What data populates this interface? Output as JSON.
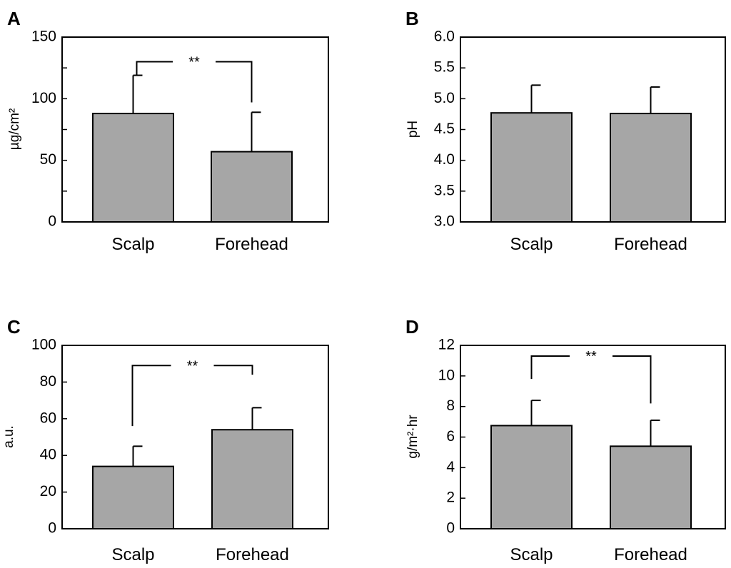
{
  "chart_data": [
    {
      "type": "bar",
      "panel": "A",
      "categories": [
        "Scalp",
        "Forehead"
      ],
      "values": [
        88,
        57
      ],
      "errors": [
        31,
        32
      ],
      "ylabel": "µg/cm²",
      "ylim": [
        0,
        150
      ],
      "major_ticks": [
        0,
        50,
        100,
        150
      ],
      "tick_labels": [
        "0",
        "50",
        "100",
        "150"
      ],
      "minor_ticks": [
        25,
        75,
        125
      ],
      "significance": {
        "label": "**",
        "left_value": 119,
        "right_value": 97,
        "top_value": 130
      }
    },
    {
      "type": "bar",
      "panel": "B",
      "categories": [
        "Scalp",
        "Forehead"
      ],
      "values": [
        4.77,
        4.76
      ],
      "errors": [
        0.45,
        0.43
      ],
      "ylabel": "pH",
      "ylim": [
        3.0,
        6.0
      ],
      "major_ticks": [
        3.0,
        3.5,
        4.0,
        4.5,
        5.0,
        5.5,
        6.0
      ],
      "tick_labels": [
        "3.0",
        "3.5",
        "4.0",
        "4.5",
        "5.0",
        "5.5",
        "6.0"
      ],
      "minor_ticks": [],
      "significance": null
    },
    {
      "type": "bar",
      "panel": "C",
      "categories": [
        "Scalp",
        "Forehead"
      ],
      "values": [
        34,
        54
      ],
      "errors": [
        11,
        12
      ],
      "ylabel": "a.u.",
      "ylim": [
        0,
        100
      ],
      "major_ticks": [
        0,
        20,
        40,
        60,
        80,
        100
      ],
      "tick_labels": [
        "0",
        "20",
        "40",
        "60",
        "80",
        "100"
      ],
      "minor_ticks": [],
      "significance": {
        "label": "**",
        "left_value": 56,
        "right_value": 84,
        "top_value": 89
      }
    },
    {
      "type": "bar",
      "panel": "D",
      "categories": [
        "Scalp",
        "Forehead"
      ],
      "values": [
        6.75,
        5.4
      ],
      "errors": [
        1.65,
        1.7
      ],
      "ylabel": "g/m²·hr",
      "ylim": [
        0,
        12
      ],
      "major_ticks": [
        0,
        2,
        4,
        6,
        8,
        10,
        12
      ],
      "tick_labels": [
        "0",
        "2",
        "4",
        "6",
        "8",
        "10",
        "12"
      ],
      "minor_ticks": [],
      "significance": {
        "label": "**",
        "left_value": 9.8,
        "right_value": 8.2,
        "top_value": 11.3
      }
    }
  ]
}
